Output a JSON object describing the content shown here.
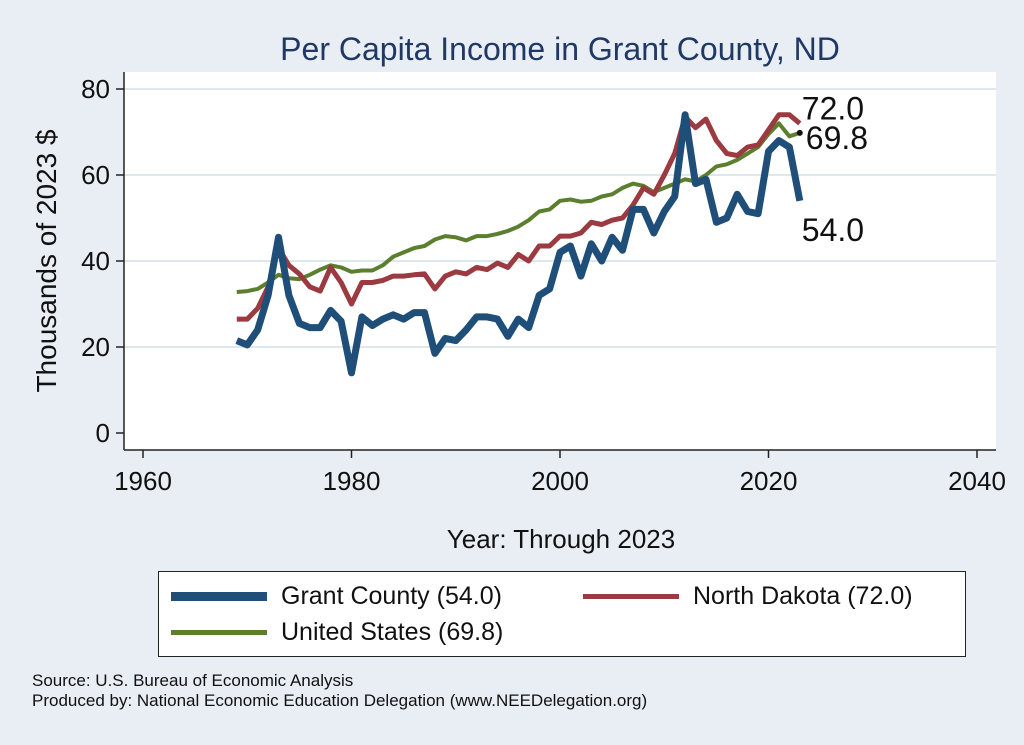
{
  "chart_data": {
    "type": "line",
    "title": "Per Capita Income in Grant County, ND",
    "xlabel": "Year: Through 2023",
    "ylabel": "Thousands of 2023 $",
    "xlim": [
      1960,
      2040
    ],
    "ylim": [
      0,
      80
    ],
    "xticks": [
      1960,
      1980,
      2000,
      2020,
      2040
    ],
    "yticks": [
      0,
      20,
      40,
      60,
      80
    ],
    "grid": true,
    "legend_position": "bottom",
    "series": [
      {
        "name": "Grant County (54.0)",
        "color": "#1f4e79",
        "width": 7,
        "end_label": "54.0",
        "x": [
          1969,
          1970,
          1971,
          1972,
          1973,
          1974,
          1975,
          1976,
          1977,
          1978,
          1979,
          1980,
          1981,
          1982,
          1983,
          1984,
          1985,
          1986,
          1987,
          1988,
          1989,
          1990,
          1991,
          1992,
          1993,
          1994,
          1995,
          1996,
          1997,
          1998,
          1999,
          2000,
          2001,
          2002,
          2003,
          2004,
          2005,
          2006,
          2007,
          2008,
          2009,
          2010,
          2011,
          2012,
          2013,
          2014,
          2015,
          2016,
          2017,
          2018,
          2019,
          2020,
          2021,
          2022,
          2023
        ],
        "values": [
          21.5,
          20.5,
          24.0,
          32.0,
          45.5,
          32.0,
          25.5,
          24.5,
          24.5,
          28.5,
          26.0,
          14.0,
          27.0,
          25.0,
          26.5,
          27.5,
          26.5,
          28.0,
          28.0,
          18.5,
          22.0,
          21.5,
          24.0,
          27.0,
          27.0,
          26.5,
          22.5,
          26.5,
          24.5,
          32.0,
          33.5,
          42.0,
          43.5,
          36.5,
          44.0,
          40.0,
          45.5,
          42.5,
          52.0,
          52.0,
          46.5,
          51.5,
          55.0,
          74.0,
          58.0,
          59.0,
          49.0,
          50.0,
          55.5,
          51.5,
          51.0,
          65.5,
          68.0,
          66.5,
          54.0
        ]
      },
      {
        "name": "North Dakota (72.0)",
        "color": "#9b3a40",
        "width": 5,
        "end_label": "72.0",
        "x": [
          1969,
          1970,
          1971,
          1972,
          1973,
          1974,
          1975,
          1976,
          1977,
          1978,
          1979,
          1980,
          1981,
          1982,
          1983,
          1984,
          1985,
          1986,
          1987,
          1988,
          1989,
          1990,
          1991,
          1992,
          1993,
          1994,
          1995,
          1996,
          1997,
          1998,
          1999,
          2000,
          2001,
          2002,
          2003,
          2004,
          2005,
          2006,
          2007,
          2008,
          2009,
          2010,
          2011,
          2012,
          2013,
          2014,
          2015,
          2016,
          2017,
          2018,
          2019,
          2020,
          2021,
          2022,
          2023
        ],
        "values": [
          26.5,
          26.5,
          29.0,
          34.0,
          43.0,
          39.0,
          37.0,
          34.0,
          33.0,
          38.5,
          35.0,
          30.0,
          35.0,
          35.0,
          35.5,
          36.5,
          36.5,
          36.8,
          37.0,
          33.5,
          36.5,
          37.5,
          37.0,
          38.5,
          38.0,
          39.5,
          38.5,
          41.5,
          40.0,
          43.5,
          43.5,
          45.8,
          45.8,
          46.5,
          49.0,
          48.5,
          49.5,
          50.0,
          53.0,
          57.0,
          55.5,
          60.0,
          65.0,
          73.5,
          71.0,
          73.0,
          68.0,
          65.0,
          64.5,
          66.5,
          67.0,
          70.5,
          74.0,
          74.0,
          72.0
        ]
      },
      {
        "name": "United States (69.8)",
        "color": "#5b7f2e",
        "width": 4,
        "end_label": "69.8",
        "x": [
          1969,
          1970,
          1971,
          1972,
          1973,
          1974,
          1975,
          1976,
          1977,
          1978,
          1979,
          1980,
          1981,
          1982,
          1983,
          1984,
          1985,
          1986,
          1987,
          1988,
          1989,
          1990,
          1991,
          1992,
          1993,
          1994,
          1995,
          1996,
          1997,
          1998,
          1999,
          2000,
          2001,
          2002,
          2003,
          2004,
          2005,
          2006,
          2007,
          2008,
          2009,
          2010,
          2011,
          2012,
          2013,
          2014,
          2015,
          2016,
          2017,
          2018,
          2019,
          2020,
          2021,
          2022,
          2023
        ],
        "values": [
          32.8,
          33.0,
          33.5,
          35.0,
          36.8,
          36.0,
          35.8,
          36.8,
          38.0,
          39.0,
          38.5,
          37.5,
          37.8,
          37.8,
          39.0,
          41.0,
          42.0,
          43.0,
          43.5,
          45.0,
          45.8,
          45.5,
          44.8,
          45.8,
          45.8,
          46.3,
          47.0,
          48.0,
          49.5,
          51.5,
          52.0,
          54.0,
          54.3,
          53.8,
          54.0,
          55.0,
          55.5,
          57.0,
          58.0,
          57.5,
          56.0,
          57.0,
          58.0,
          59.0,
          58.5,
          60.0,
          62.0,
          62.5,
          63.5,
          65.0,
          66.5,
          69.5,
          72.0,
          69.0,
          69.8
        ]
      }
    ]
  },
  "source": {
    "line1": "Source: U.S. Bureau of Economic Analysis",
    "line2": "Produced by: National Economic Education Delegation (www.NEEDelegation.org)"
  },
  "colors": {
    "outer_background": "#e8eef4",
    "plot_background": "#ffffff",
    "title": "#1f3864",
    "grid": "#dde8ec"
  }
}
